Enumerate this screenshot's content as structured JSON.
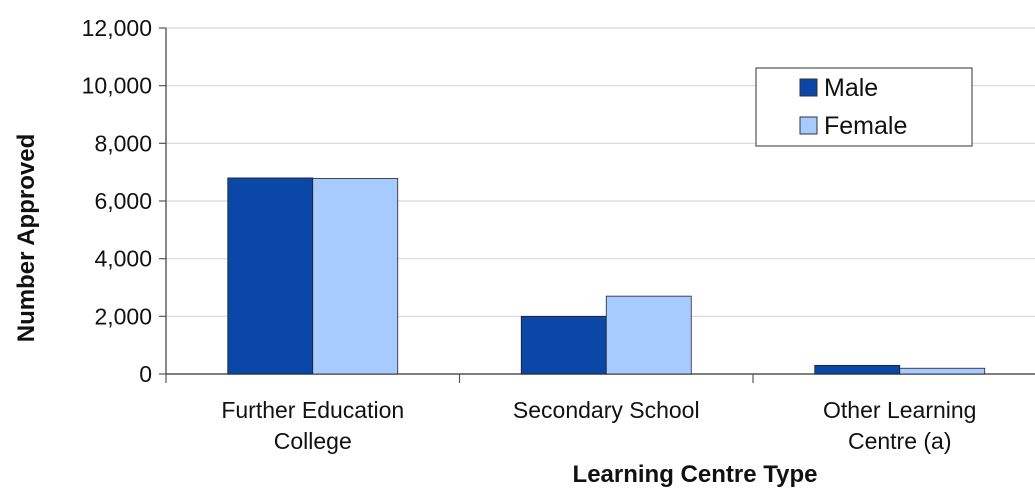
{
  "chart_data": {
    "type": "bar",
    "title": "",
    "xlabel": "Learning Centre Type",
    "ylabel": "Number Approved",
    "ylim": [
      0,
      12000
    ],
    "yticks": [
      0,
      2000,
      4000,
      6000,
      8000,
      10000,
      12000
    ],
    "ytick_labels": [
      "0",
      "2,000",
      "4,000",
      "6,000",
      "8,000",
      "10,000",
      "12,000"
    ],
    "categories": [
      [
        "Further Education",
        "College"
      ],
      [
        "Secondary School"
      ],
      [
        "Other Learning",
        "Centre (a)"
      ]
    ],
    "series": [
      {
        "name": "Male",
        "values": [
          6800,
          2000,
          300
        ],
        "color": "#0b47a6"
      },
      {
        "name": "Female",
        "values": [
          6780,
          2700,
          200
        ],
        "color": "#a7cbff"
      }
    ],
    "grid": true,
    "legend_position": "top-right"
  }
}
